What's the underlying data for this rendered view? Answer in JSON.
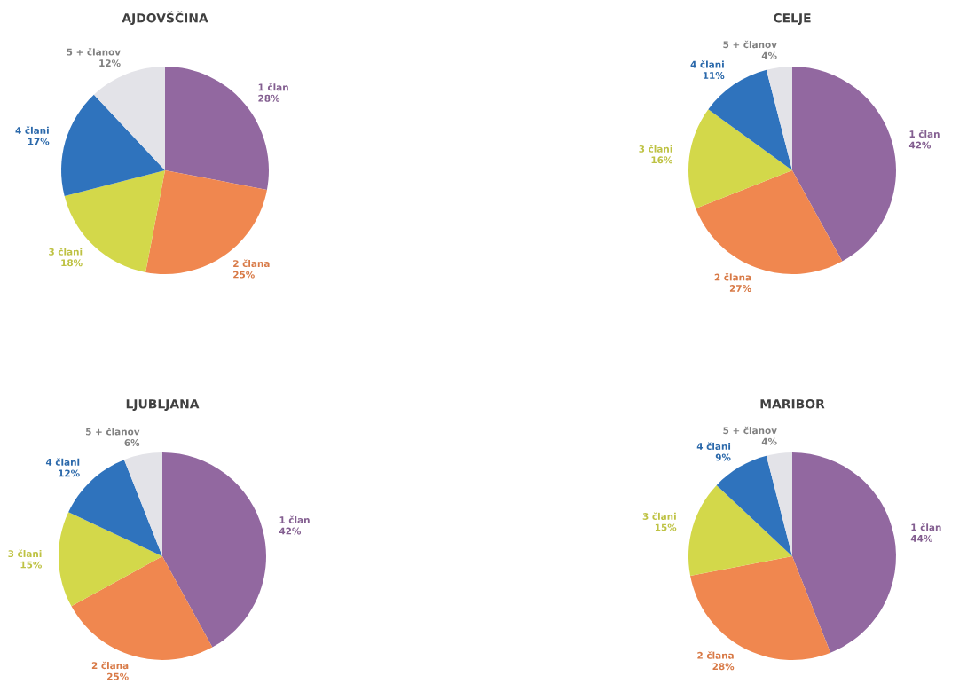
{
  "chart_data": [
    {
      "type": "pie",
      "title": "AJDOVŠČINA",
      "categories": [
        "1 član",
        "2 člana",
        "3 člani",
        "4 člani",
        "5 + članov"
      ],
      "values": [
        28,
        25,
        18,
        17,
        12
      ],
      "value_labels": [
        "28%",
        "25%",
        "18%",
        "17%",
        "12%"
      ],
      "colors": [
        "#9268a0",
        "#f0874f",
        "#d3d84a",
        "#2f73bd",
        "#e3e3e8"
      ]
    },
    {
      "type": "pie",
      "title": "CELJE",
      "categories": [
        "1 član",
        "2 člana",
        "3 člani",
        "4 člani",
        "5 + članov"
      ],
      "values": [
        42,
        27,
        16,
        11,
        4
      ],
      "value_labels": [
        "42%",
        "27%",
        "16%",
        "11%",
        "4%"
      ],
      "colors": [
        "#9268a0",
        "#f0874f",
        "#d3d84a",
        "#2f73bd",
        "#e3e3e8"
      ]
    },
    {
      "type": "pie",
      "title": "LJUBLJANA",
      "categories": [
        "1 član",
        "2 člana",
        "3 člani",
        "4 člani",
        "5 + članov"
      ],
      "values": [
        42,
        25,
        15,
        12,
        6
      ],
      "value_labels": [
        "42%",
        "25%",
        "15%",
        "12%",
        "6%"
      ],
      "colors": [
        "#9268a0",
        "#f0874f",
        "#d3d84a",
        "#2f73bd",
        "#e3e3e8"
      ]
    },
    {
      "type": "pie",
      "title": "MARIBOR",
      "categories": [
        "1 član",
        "2 člana",
        "3 člani",
        "4 člani",
        "5 + članov"
      ],
      "values": [
        44,
        28,
        15,
        9,
        4
      ],
      "value_labels": [
        "44%",
        "28%",
        "15%",
        "9%",
        "4%"
      ],
      "colors": [
        "#9268a0",
        "#f0874f",
        "#d3d84a",
        "#2f73bd",
        "#e3e3e8"
      ]
    }
  ]
}
